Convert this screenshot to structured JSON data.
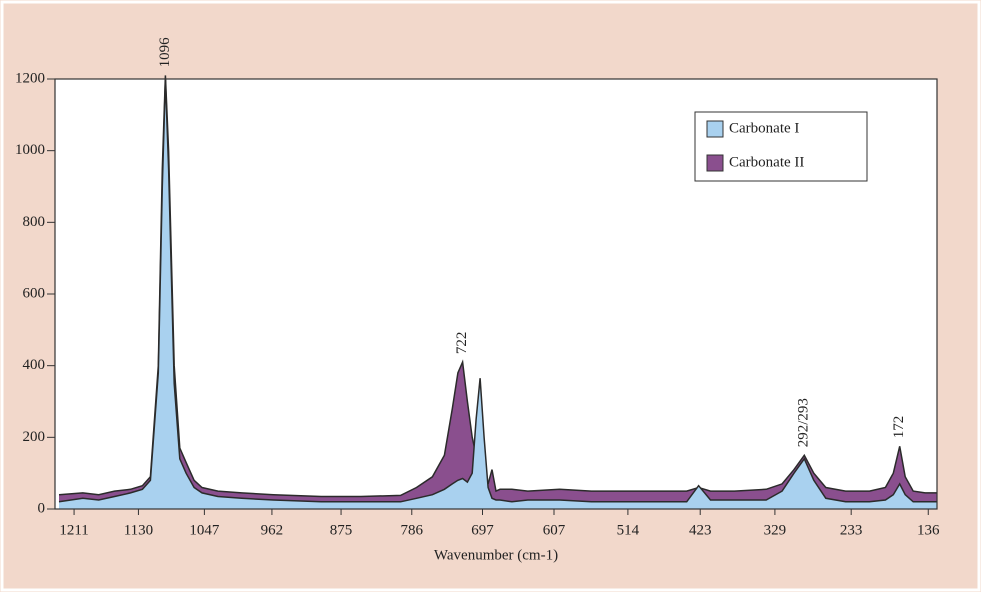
{
  "chart_data": {
    "type": "area",
    "x_label": "Wavenumber (cm-1)",
    "x": [
      1230,
      1200,
      1180,
      1160,
      1140,
      1125,
      1115,
      1105,
      1100,
      1096,
      1092,
      1085,
      1078,
      1070,
      1060,
      1050,
      1030,
      1000,
      960,
      900,
      850,
      800,
      780,
      760,
      745,
      735,
      728,
      722,
      716,
      710,
      705,
      700,
      695,
      690,
      685,
      680,
      675,
      660,
      640,
      600,
      560,
      520,
      480,
      440,
      425,
      410,
      380,
      340,
      320,
      305,
      292,
      280,
      265,
      240,
      210,
      190,
      180,
      172,
      165,
      155,
      140,
      125
    ],
    "series": [
      {
        "name": "Carbonate II",
        "color": "#8a4f8e",
        "values": [
          40,
          45,
          40,
          50,
          55,
          65,
          90,
          400,
          950,
          1210,
          1000,
          400,
          170,
          130,
          80,
          60,
          50,
          45,
          40,
          35,
          35,
          38,
          60,
          90,
          150,
          280,
          380,
          410,
          300,
          200,
          150,
          200,
          120,
          70,
          110,
          50,
          55,
          55,
          50,
          55,
          50,
          50,
          50,
          50,
          60,
          50,
          50,
          55,
          70,
          110,
          150,
          100,
          60,
          50,
          50,
          60,
          100,
          175,
          90,
          50,
          45,
          45
        ]
      },
      {
        "name": "Carbonate I",
        "color": "#a9d1ef",
        "values": [
          20,
          30,
          25,
          35,
          45,
          55,
          80,
          380,
          900,
          1200,
          950,
          350,
          140,
          100,
          60,
          45,
          35,
          30,
          25,
          20,
          20,
          20,
          30,
          40,
          55,
          70,
          80,
          85,
          75,
          100,
          250,
          365,
          200,
          60,
          30,
          25,
          25,
          20,
          25,
          25,
          20,
          20,
          20,
          20,
          65,
          25,
          25,
          25,
          50,
          100,
          140,
          80,
          30,
          20,
          20,
          25,
          40,
          70,
          40,
          20,
          20,
          20
        ]
      }
    ],
    "annotations": [
      {
        "text": "1096",
        "x": 1096,
        "y": 1210
      },
      {
        "text": "722",
        "x": 722,
        "y": 410
      },
      {
        "text": "292/293",
        "x": 292,
        "y": 150
      },
      {
        "text": "172",
        "x": 172,
        "y": 175
      }
    ],
    "xlim": [
      1235,
      125
    ],
    "ylim": [
      0,
      1200
    ],
    "xticks": [
      1211,
      1130,
      1047,
      962,
      875,
      786,
      697,
      607,
      514,
      423,
      329,
      233,
      136
    ],
    "yticks": [
      0,
      200,
      400,
      600,
      800,
      1000,
      1200
    ],
    "legend": "top-right"
  }
}
